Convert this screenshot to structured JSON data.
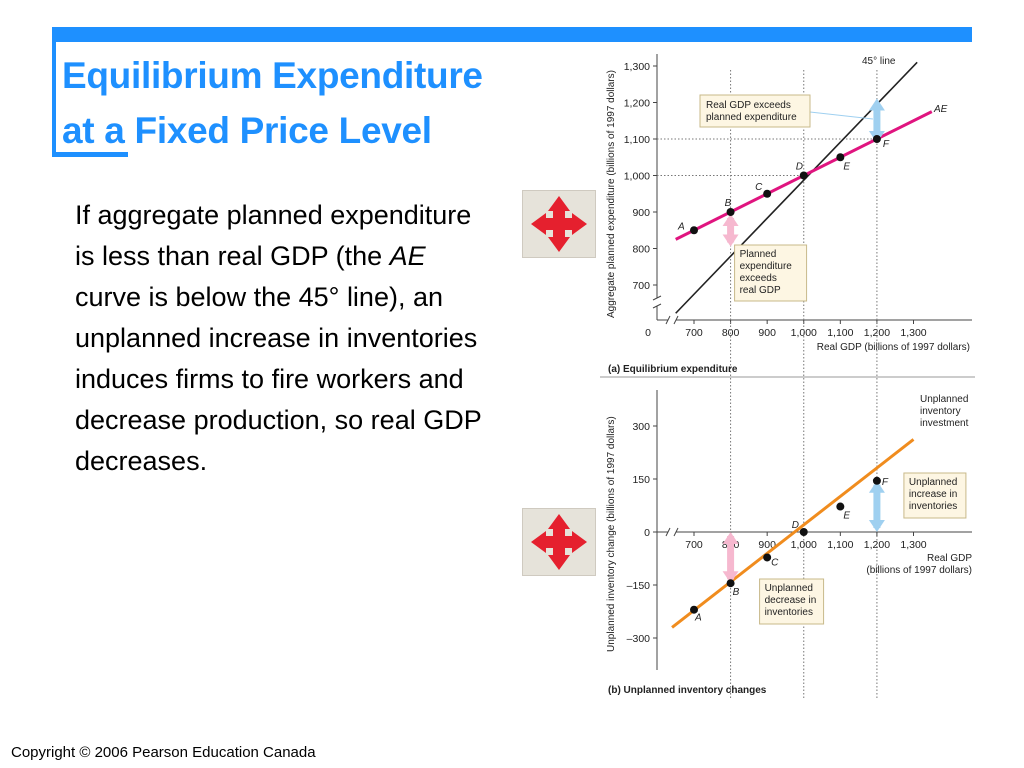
{
  "slide": {
    "title_line1": "Equilibrium Expenditure",
    "title_line2": "at a Fixed Price Level",
    "body_before": "If aggregate planned expenditure is less than real GDP (the ",
    "body_em": "AE",
    "body_after": " curve is below the 45° line), an unplanned increase in inventories induces firms to fire workers and decrease production, so real GDP decreases.",
    "copyright": "Copyright © 2006 Pearson Education Canada",
    "accent_color": "#1e90ff",
    "nav_icon": "four-way-arrow-icon",
    "nav_icon_color": "#e5202e"
  },
  "chart_data": [
    {
      "type": "line",
      "caption": "(a) Equilibrium expenditure",
      "xlabel": "Real GDP (billions of 1997 dollars)",
      "ylabel": "Aggregate planned expenditure (billions of 1997 dollars)",
      "xlim": [
        650,
        1350
      ],
      "ylim": [
        650,
        1300
      ],
      "x_ticks": [
        700,
        800,
        900,
        1000,
        1100,
        1200,
        1300
      ],
      "x_tick_labels": [
        "700",
        "800",
        "900",
        "1,000",
        "1,100",
        "1,200",
        "1,300"
      ],
      "y_ticks": [
        700,
        800,
        900,
        1000,
        1100,
        1200,
        1300
      ],
      "y_tick_labels": [
        "700",
        "800",
        "900",
        "1,000",
        "1,100",
        "1,200",
        "1,300"
      ],
      "origin_label": "0",
      "series": [
        {
          "name": "AE",
          "color": "#e0147f",
          "x": [
            650,
            1350
          ],
          "y": [
            825,
            1175
          ],
          "points": [
            {
              "label": "A",
              "x": 700,
              "y": 850
            },
            {
              "label": "B",
              "x": 800,
              "y": 900
            },
            {
              "label": "C",
              "x": 900,
              "y": 950
            },
            {
              "label": "D",
              "x": 1000,
              "y": 1000
            },
            {
              "label": "E",
              "x": 1100,
              "y": 1050
            },
            {
              "label": "F",
              "x": 1200,
              "y": 1100
            }
          ]
        },
        {
          "name": "45° line",
          "color": "#222222",
          "x": [
            650,
            1310
          ],
          "y": [
            650,
            1310
          ]
        }
      ],
      "annotations": [
        {
          "text": "Real GDP exceeds planned expenditure",
          "lines": [
            "Real GDP exceeds",
            "planned expenditure"
          ],
          "at_x": 1200
        },
        {
          "text": "Planned expenditure exceeds real GDP",
          "lines": [
            "Planned",
            "expenditure",
            "exceeds",
            "real GDP"
          ],
          "at_x": 800
        }
      ]
    },
    {
      "type": "line",
      "caption": "(b) Unplanned inventory changes",
      "xlabel": "Real GDP (billions of 1997 dollars)",
      "xlabel_lines": [
        "Real GDP",
        "(billions of 1997 dollars)"
      ],
      "ylabel": "Unplanned inventory change (billions of 1997 dollars)",
      "xlim": [
        650,
        1350
      ],
      "ylim": [
        -330,
        330
      ],
      "x_ticks": [
        700,
        800,
        900,
        1000,
        1100,
        1200,
        1300
      ],
      "x_tick_labels": [
        "700",
        "800",
        "900",
        "1,000",
        "1,100",
        "1,200",
        "1,300"
      ],
      "y_ticks": [
        -300,
        -150,
        0,
        150,
        300
      ],
      "y_tick_labels": [
        "–300",
        "–150",
        "0",
        "150",
        "300"
      ],
      "series": [
        {
          "name": "Unplanned inventory investment",
          "name_lines": [
            "Unplanned",
            "inventory",
            "investment"
          ],
          "color": "#f08c1e",
          "x": [
            640,
            1300
          ],
          "y": [
            -270,
            262
          ],
          "points": [
            {
              "label": "A",
              "x": 700,
              "y": -220
            },
            {
              "label": "B",
              "x": 800,
              "y": -145
            },
            {
              "label": "C",
              "x": 900,
              "y": -72
            },
            {
              "label": "D",
              "x": 1000,
              "y": 0
            },
            {
              "label": "E",
              "x": 1100,
              "y": 72
            },
            {
              "label": "F",
              "x": 1200,
              "y": 145
            }
          ]
        }
      ],
      "annotations": [
        {
          "text": "Unplanned increase in inventories",
          "lines": [
            "Unplanned",
            "increase in",
            "inventories"
          ],
          "at_x": 1200
        },
        {
          "text": "Unplanned decrease in inventories",
          "lines": [
            "Unplanned",
            "decrease in",
            "inventories"
          ],
          "at_x": 800
        }
      ]
    }
  ]
}
